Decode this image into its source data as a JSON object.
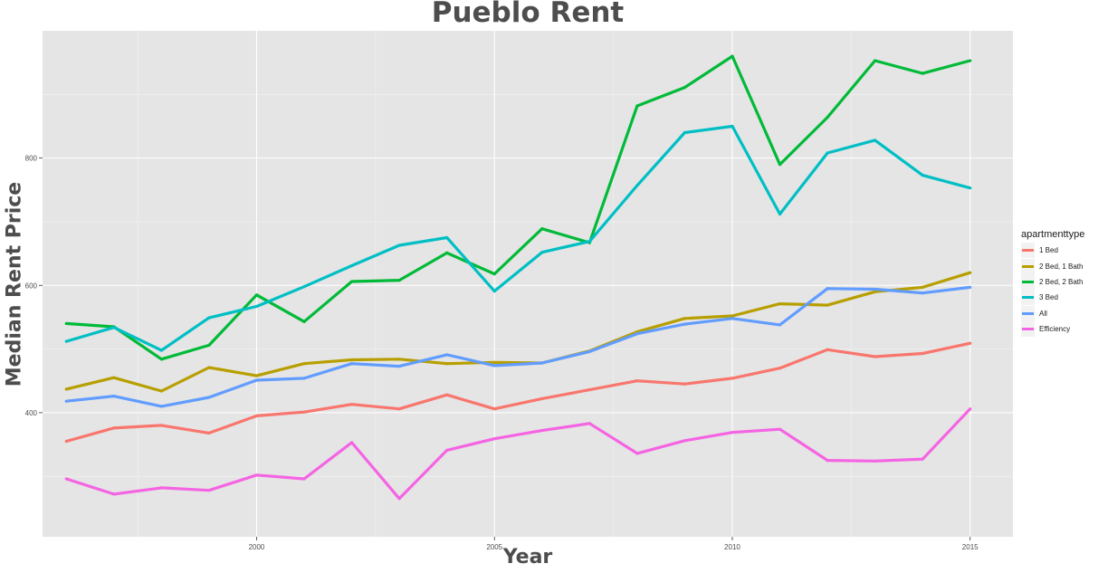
{
  "chart_data": {
    "type": "line",
    "title": "Pueblo Rent",
    "xlabel": "Year",
    "ylabel": "Median Rent Price",
    "xlim": [
      1995.5,
      2015.9
    ],
    "ylim": [
      205,
      1000
    ],
    "x_ticks": [
      2000,
      2005,
      2010,
      2015
    ],
    "y_ticks": [
      400,
      600,
      800
    ],
    "x_tick_labels": [
      "2000",
      "2005",
      "2010",
      "2015"
    ],
    "y_tick_labels": [
      "400",
      "600",
      "800"
    ],
    "grid": true,
    "legend_title": "apartmenttype",
    "legend_position": "right",
    "x": [
      1996,
      1997,
      1998,
      1999,
      2000,
      2001,
      2002,
      2003,
      2004,
      2005,
      2006,
      2007,
      2008,
      2009,
      2010,
      2011,
      2012,
      2013,
      2014,
      2015
    ],
    "series": [
      {
        "name": "1 Bed",
        "color": "#f8766d",
        "values": [
          355,
          376,
          380,
          368,
          395,
          401,
          413,
          406,
          428,
          406,
          422,
          436,
          450,
          445,
          454,
          470,
          499,
          488,
          493,
          509
        ]
      },
      {
        "name": "2 Bed, 1 Bath",
        "color": "#b79f00",
        "values": [
          437,
          455,
          434,
          471,
          458,
          477,
          483,
          484,
          477,
          479,
          478,
          497,
          527,
          548,
          552,
          571,
          569,
          590,
          597,
          620
        ]
      },
      {
        "name": "2 Bed, 2 Bath",
        "color": "#00ba38",
        "values": [
          540,
          535,
          484,
          506,
          585,
          543,
          606,
          608,
          651,
          618,
          689,
          667,
          882,
          911,
          960,
          790,
          864,
          953,
          933,
          953
        ]
      },
      {
        "name": "3 Bed",
        "color": "#00bfc4",
        "values": [
          512,
          534,
          498,
          549,
          567,
          598,
          631,
          663,
          675,
          591,
          652,
          669,
          757,
          840,
          850,
          712,
          808,
          828,
          773,
          753
        ]
      },
      {
        "name": "All",
        "color": "#619cff",
        "values": [
          418,
          426,
          410,
          424,
          451,
          454,
          477,
          473,
          491,
          474,
          478,
          496,
          524,
          539,
          548,
          538,
          595,
          594,
          588,
          597
        ]
      },
      {
        "name": "Efficiency",
        "color": "#f564e3",
        "values": [
          296,
          272,
          282,
          278,
          302,
          296,
          353,
          265,
          341,
          359,
          372,
          383,
          336,
          356,
          369,
          374,
          325,
          324,
          327,
          406
        ]
      }
    ]
  }
}
